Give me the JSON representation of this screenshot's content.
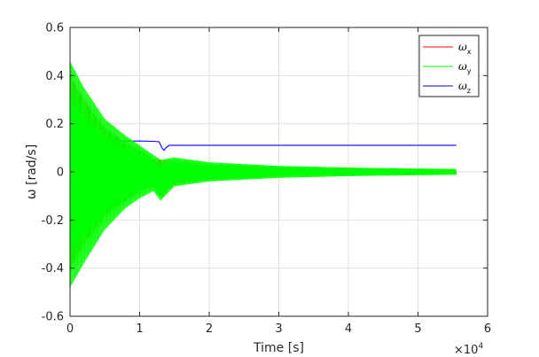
{
  "chart_data": {
    "type": "line",
    "xlabel": "Time [s]",
    "ylabel": "ω [rad/s]",
    "x_exponent": "×10",
    "x_exponent_power": "4",
    "xlim": [
      0,
      60000
    ],
    "ylim": [
      -0.6,
      0.6
    ],
    "x_ticks": [
      0,
      10000,
      20000,
      30000,
      40000,
      50000,
      60000
    ],
    "x_tick_labels": [
      "0",
      "1",
      "2",
      "3",
      "4",
      "5",
      "6"
    ],
    "y_ticks": [
      -0.6,
      -0.4,
      -0.2,
      0,
      0.2,
      0.4,
      0.6
    ],
    "y_tick_labels": [
      "-0.6",
      "-0.4",
      "-0.2",
      "0",
      "0.2",
      "0.4",
      "0.6"
    ],
    "grid": true,
    "legend_position": "top-right",
    "series": [
      {
        "name": "ω_x",
        "symbol": "ω",
        "subscript": "x",
        "color": "#ff0000",
        "envelope": [
          {
            "x": 0,
            "upper": 0.4,
            "lower": -0.4
          },
          {
            "x": 2000,
            "upper": 0.3,
            "lower": -0.3
          },
          {
            "x": 5000,
            "upper": 0.18,
            "lower": -0.18
          },
          {
            "x": 8000,
            "upper": 0.12,
            "lower": -0.12
          },
          {
            "x": 10000,
            "upper": 0.09,
            "lower": -0.08
          },
          {
            "x": 12000,
            "upper": 0.05,
            "lower": -0.06
          },
          {
            "x": 13000,
            "upper": 0.05,
            "lower": -0.1
          },
          {
            "x": 15000,
            "upper": 0.04,
            "lower": -0.05
          },
          {
            "x": 20000,
            "upper": 0.025,
            "lower": -0.03
          },
          {
            "x": 30000,
            "upper": 0.015,
            "lower": -0.015
          },
          {
            "x": 40000,
            "upper": 0.01,
            "lower": -0.01
          },
          {
            "x": 55500,
            "upper": 0.008,
            "lower": -0.008
          }
        ]
      },
      {
        "name": "ω_y",
        "symbol": "ω",
        "subscript": "y",
        "color": "#00ff00",
        "envelope": [
          {
            "x": 0,
            "upper": 0.46,
            "lower": -0.48
          },
          {
            "x": 2000,
            "upper": 0.35,
            "lower": -0.38
          },
          {
            "x": 5000,
            "upper": 0.22,
            "lower": -0.24
          },
          {
            "x": 8000,
            "upper": 0.15,
            "lower": -0.15
          },
          {
            "x": 10000,
            "upper": 0.11,
            "lower": -0.11
          },
          {
            "x": 12000,
            "upper": 0.07,
            "lower": -0.08
          },
          {
            "x": 13000,
            "upper": 0.05,
            "lower": -0.12
          },
          {
            "x": 15000,
            "upper": 0.06,
            "lower": -0.06
          },
          {
            "x": 20000,
            "upper": 0.04,
            "lower": -0.04
          },
          {
            "x": 30000,
            "upper": 0.025,
            "lower": -0.025
          },
          {
            "x": 40000,
            "upper": 0.018,
            "lower": -0.018
          },
          {
            "x": 55500,
            "upper": 0.012,
            "lower": -0.012
          }
        ]
      },
      {
        "name": "ω_z",
        "symbol": "ω",
        "subscript": "z",
        "color": "#0000ff",
        "settled_value": 0.11,
        "points": [
          [
            0,
            0.31
          ],
          [
            1000,
            0.2
          ],
          [
            2000,
            0.15
          ],
          [
            3000,
            0.135
          ],
          [
            5000,
            0.13
          ],
          [
            8000,
            0.128
          ],
          [
            10000,
            0.128
          ],
          [
            12000,
            0.127
          ],
          [
            12800,
            0.125
          ],
          [
            13200,
            0.1
          ],
          [
            13500,
            0.09
          ],
          [
            13800,
            0.1
          ],
          [
            14200,
            0.11
          ],
          [
            15000,
            0.11
          ],
          [
            20000,
            0.11
          ],
          [
            30000,
            0.11
          ],
          [
            40000,
            0.11
          ],
          [
            55500,
            0.11
          ]
        ],
        "envelope": [
          {
            "x": 0,
            "upper": 0.32,
            "lower": -0.3
          },
          {
            "x": 1000,
            "upper": 0.22,
            "lower": -0.18
          },
          {
            "x": 2000,
            "upper": 0.16,
            "lower": 0.05
          },
          {
            "x": 3000,
            "upper": 0.14,
            "lower": 0.11
          },
          {
            "x": 5000,
            "upper": 0.135,
            "lower": 0.125
          }
        ]
      }
    ]
  }
}
